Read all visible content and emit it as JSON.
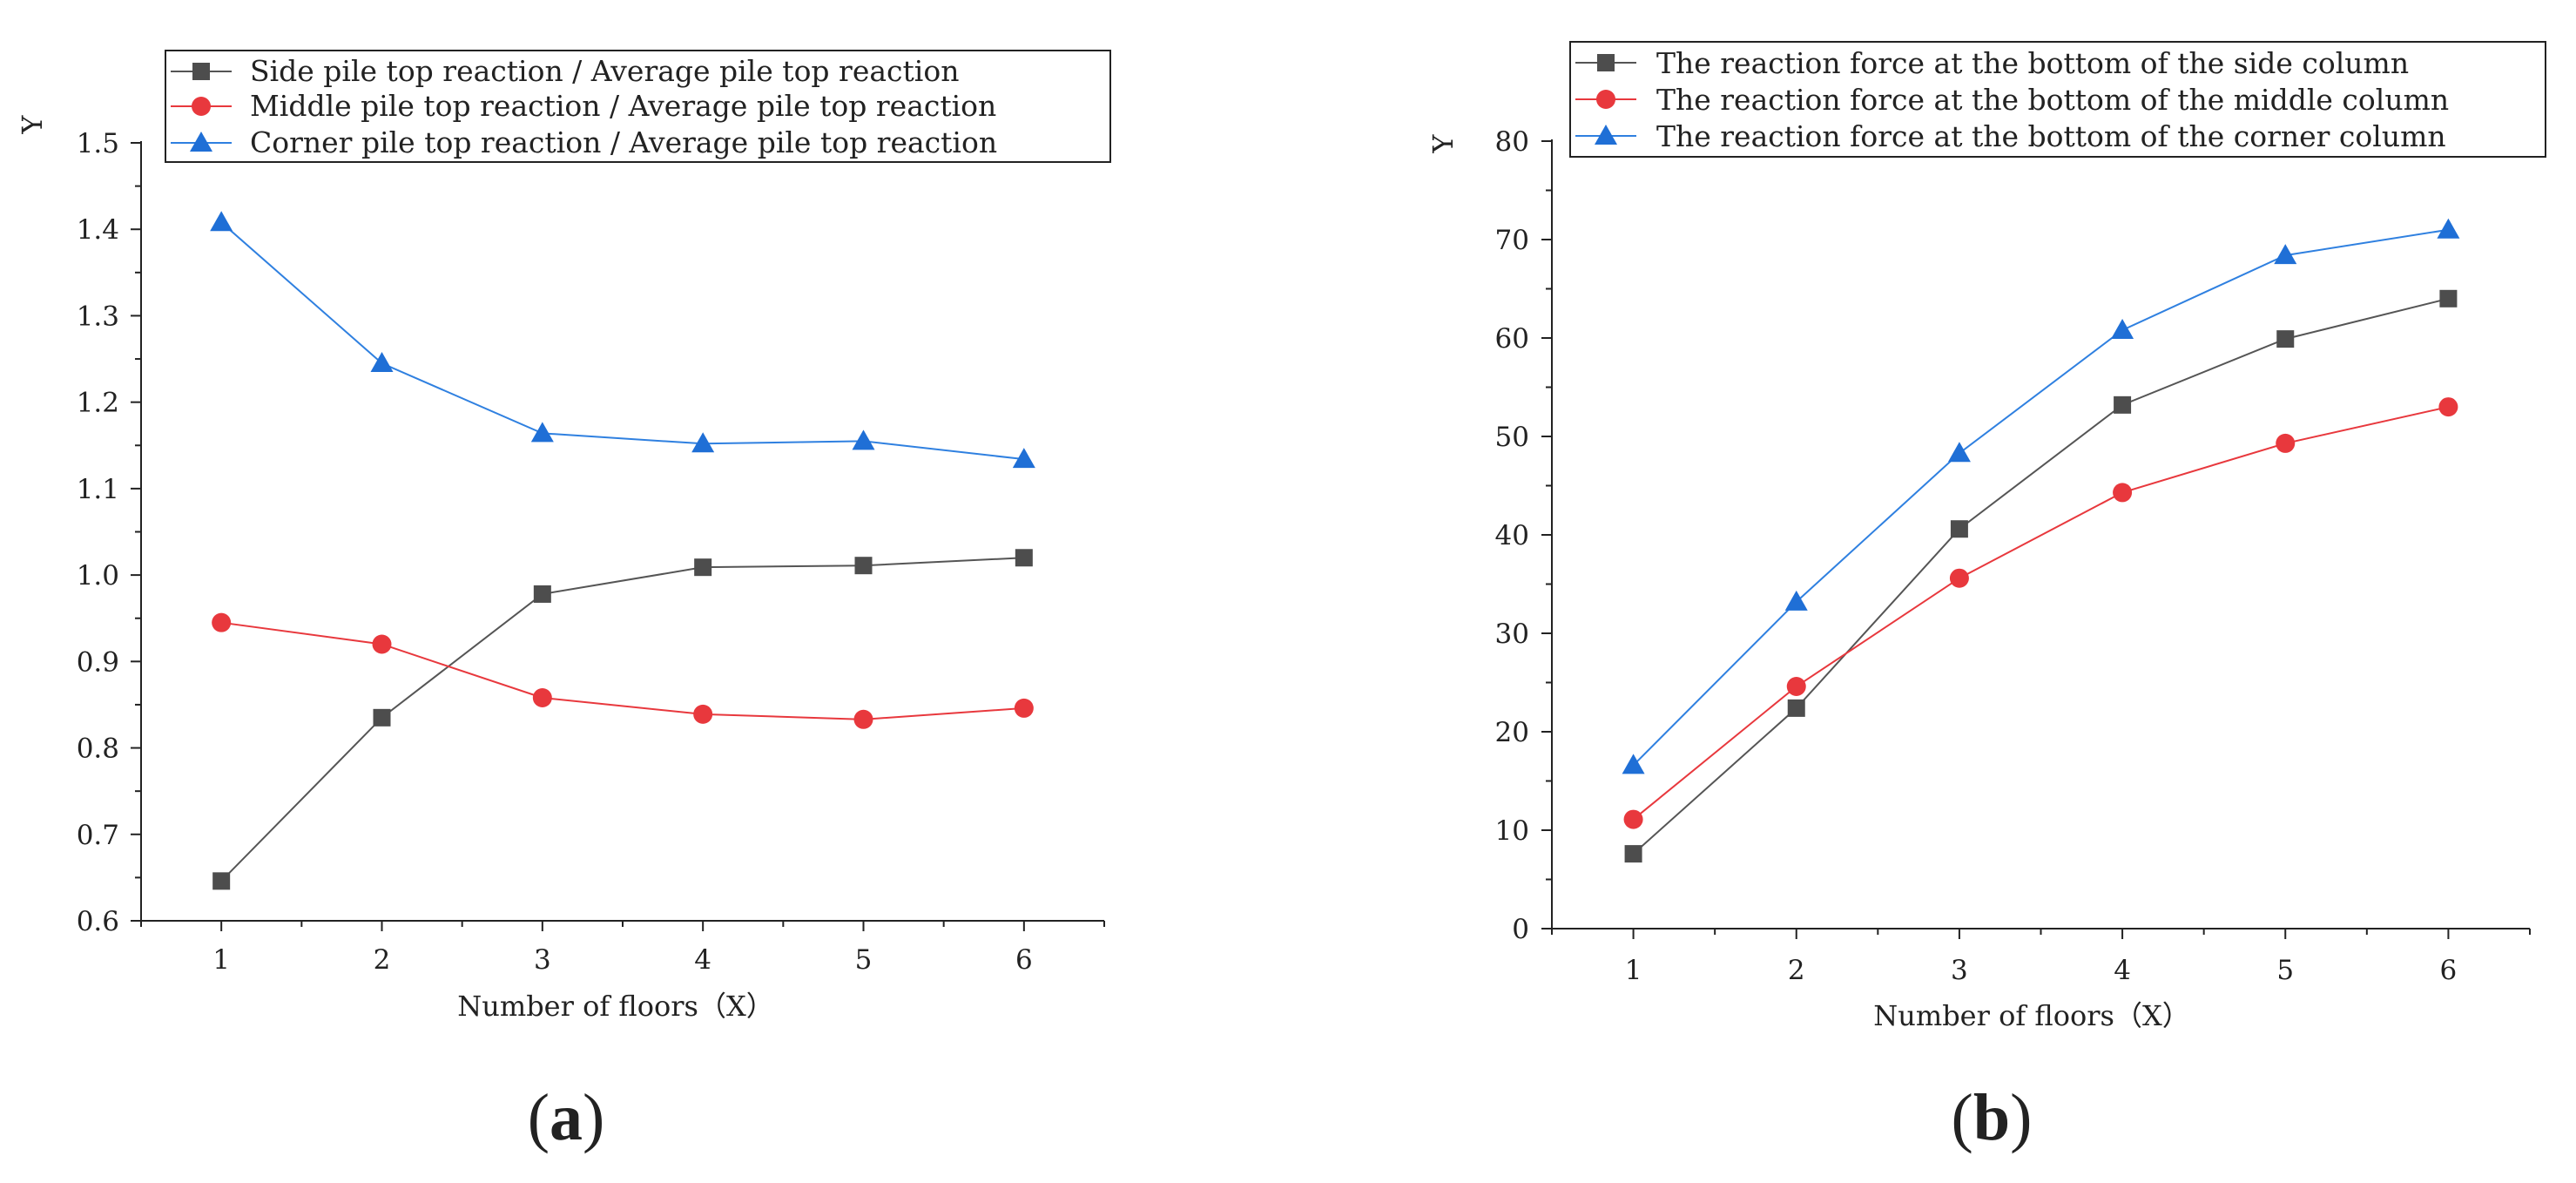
{
  "chart_data": [
    {
      "panel": "a",
      "type": "line",
      "title": "",
      "xlabel": "Number of floors（X）",
      "ylabel": "Y",
      "x": [
        1,
        2,
        3,
        4,
        5,
        6
      ],
      "xlim": [
        0.5,
        6.5
      ],
      "ylim": [
        0.6,
        1.5
      ],
      "xticks": [
        "1",
        "2",
        "3",
        "4",
        "5",
        "6"
      ],
      "yticks": [
        "0.6",
        "0.7",
        "0.8",
        "0.9",
        "1.0",
        "1.1",
        "1.2",
        "1.3",
        "1.4",
        "1.5"
      ],
      "grid": false,
      "legend_position": "top",
      "series": [
        {
          "name": "Side pile top reaction / Average pile top reaction",
          "marker": "square",
          "color": "#4d4d4d",
          "line_color": "#555555",
          "values": [
            0.646,
            0.835,
            0.978,
            1.009,
            1.011,
            1.02
          ]
        },
        {
          "name": "Middle pile top reaction / Average pile top reaction",
          "marker": "circle",
          "color": "#e8383d",
          "line_color": "#e8383d",
          "values": [
            0.945,
            0.92,
            0.858,
            0.839,
            0.833,
            0.846
          ]
        },
        {
          "name": "Corner pile top reaction / Average pile top reaction",
          "marker": "triangle",
          "color": "#1f6fd6",
          "line_color": "#2f80e0",
          "values": [
            1.408,
            1.245,
            1.164,
            1.152,
            1.155,
            1.134
          ]
        }
      ]
    },
    {
      "panel": "b",
      "type": "line",
      "title": "",
      "xlabel": "Number of floors（X）",
      "ylabel": "Y",
      "x": [
        1,
        2,
        3,
        4,
        5,
        6
      ],
      "xlim": [
        0.5,
        6.5
      ],
      "ylim": [
        0,
        80
      ],
      "xticks": [
        "1",
        "2",
        "3",
        "4",
        "5",
        "6"
      ],
      "yticks": [
        "0",
        "10",
        "20",
        "30",
        "40",
        "50",
        "60",
        "70",
        "80"
      ],
      "grid": false,
      "legend_position": "top",
      "series": [
        {
          "name": "The reaction force at the bottom of the side column",
          "marker": "square",
          "color": "#4d4d4d",
          "line_color": "#555555",
          "values": [
            7.6,
            22.4,
            40.6,
            53.2,
            59.9,
            64.0
          ]
        },
        {
          "name": "The reaction force at the bottom of the middle column",
          "marker": "circle",
          "color": "#e8383d",
          "line_color": "#e8383d",
          "values": [
            11.1,
            24.6,
            35.6,
            44.3,
            49.3,
            53.0
          ]
        },
        {
          "name": "The reaction force at the bottom of the corner column",
          "marker": "triangle",
          "color": "#1f6fd6",
          "line_color": "#2f80e0",
          "values": [
            16.6,
            33.2,
            48.3,
            60.8,
            68.4,
            71.0
          ]
        }
      ]
    }
  ],
  "panel_labels": [
    {
      "open": "(",
      "letter": "a",
      "close": ")"
    },
    {
      "open": "(",
      "letter": "b",
      "close": ")"
    }
  ]
}
